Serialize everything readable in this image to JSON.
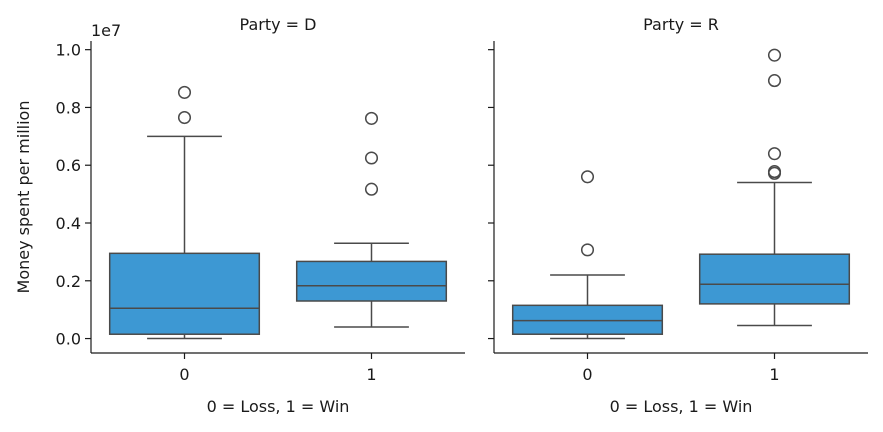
{
  "chart_data": {
    "type": "box",
    "ylabel": "Money spent per million",
    "y_offset_label": "1e7",
    "ylim": [
      -0.05,
      1.03
    ],
    "yticks": [
      0.0,
      0.2,
      0.4,
      0.6,
      0.8,
      1.0
    ],
    "ytick_labels": [
      "0.0",
      "0.2",
      "0.4",
      "0.6",
      "0.8",
      "1.0"
    ],
    "grid": false,
    "box_color": "#3d98d3",
    "line_color": "#4a4a4a",
    "panels": [
      {
        "title": "Party = D",
        "xlabel": "0 = Loss, 1 = Win",
        "categories": [
          "0",
          "1"
        ],
        "boxes": [
          {
            "category": "0",
            "whisker_low": 0.0,
            "q1": 0.015,
            "median": 0.105,
            "q3": 0.295,
            "whisker_high": 0.7,
            "outliers": [
              0.765,
              0.852
            ]
          },
          {
            "category": "1",
            "whisker_low": 0.04,
            "q1": 0.13,
            "median": 0.183,
            "q3": 0.267,
            "whisker_high": 0.33,
            "outliers": [
              0.517,
              0.625,
              0.762
            ]
          }
        ]
      },
      {
        "title": "Party = R",
        "xlabel": "0 = Loss, 1 = Win",
        "categories": [
          "0",
          "1"
        ],
        "boxes": [
          {
            "category": "0",
            "whisker_low": 0.0,
            "q1": 0.015,
            "median": 0.062,
            "q3": 0.115,
            "whisker_high": 0.22,
            "outliers": [
              0.307,
              0.56
            ]
          },
          {
            "category": "1",
            "whisker_low": 0.045,
            "q1": 0.12,
            "median": 0.188,
            "q3": 0.292,
            "whisker_high": 0.54,
            "outliers": [
              0.572,
              0.578,
              0.64,
              0.893,
              0.981
            ]
          }
        ]
      }
    ]
  }
}
